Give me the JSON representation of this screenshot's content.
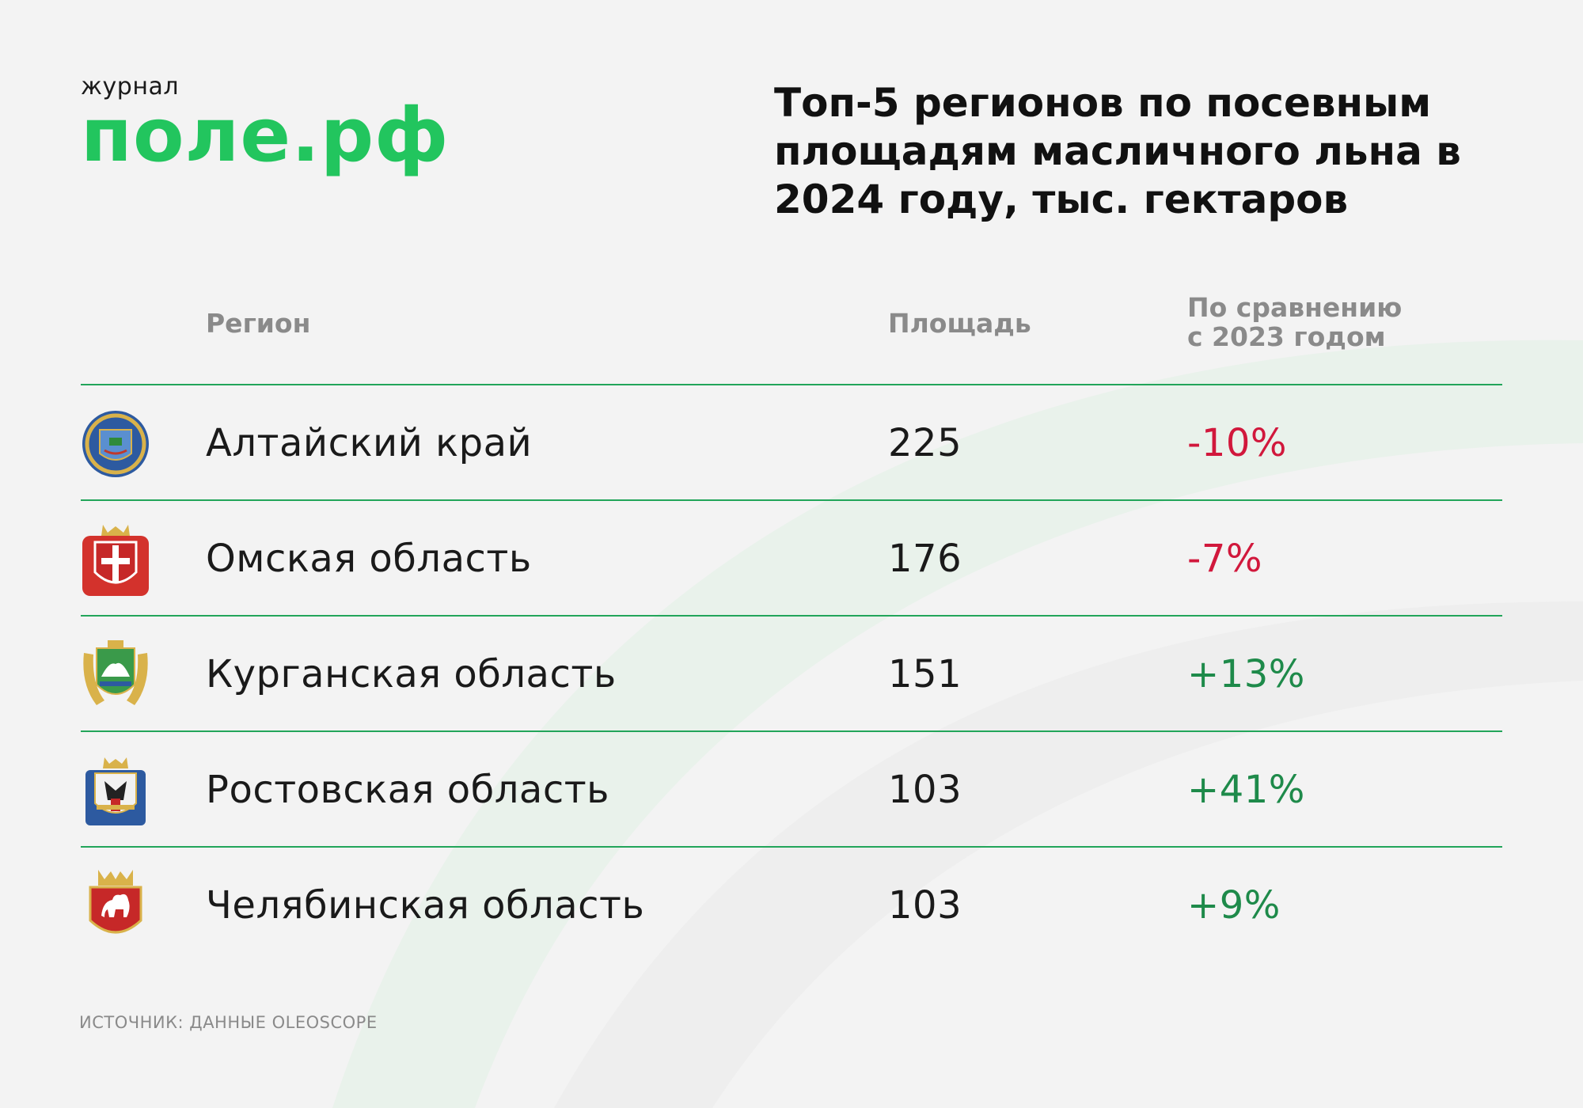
{
  "logo": {
    "small": "журнал",
    "big": "поле.рф"
  },
  "chart_data": {
    "type": "table",
    "title": "Топ-5 регионов по посевным площадям масличного льна в 2024 году, тыс. гектаров",
    "columns": [
      "Регион",
      "Площадь",
      "По сравнению с 2023 годом"
    ],
    "column_change_lines": [
      "По сравнению",
      "с 2023 годом"
    ],
    "rows": [
      {
        "region": "Алтайский край",
        "area": 225,
        "change": "-10%",
        "trend": "negative",
        "emblem": "altai-krai-coat-of-arms-icon"
      },
      {
        "region": "Омская область",
        "area": 176,
        "change": "-7%",
        "trend": "negative",
        "emblem": "omsk-oblast-coat-of-arms-icon"
      },
      {
        "region": "Курганская область",
        "area": 151,
        "change": "+13%",
        "trend": "positive",
        "emblem": "kurgan-oblast-coat-of-arms-icon"
      },
      {
        "region": "Ростовская область",
        "area": 103,
        "change": "+41%",
        "trend": "positive",
        "emblem": "rostov-oblast-coat-of-arms-icon"
      },
      {
        "region": "Челябинская область",
        "area": 103,
        "change": "+9%",
        "trend": "positive",
        "emblem": "chelyabinsk-oblast-coat-of-arms-icon"
      }
    ]
  },
  "source": "ИСТОЧНИК: ДАННЫЕ OLEOSCOPE",
  "colors": {
    "brand_green": "#22c55e",
    "rule_green": "#22a55a",
    "negative": "#d1183c",
    "positive": "#1e8a4a",
    "background": "#f3f3f3"
  }
}
